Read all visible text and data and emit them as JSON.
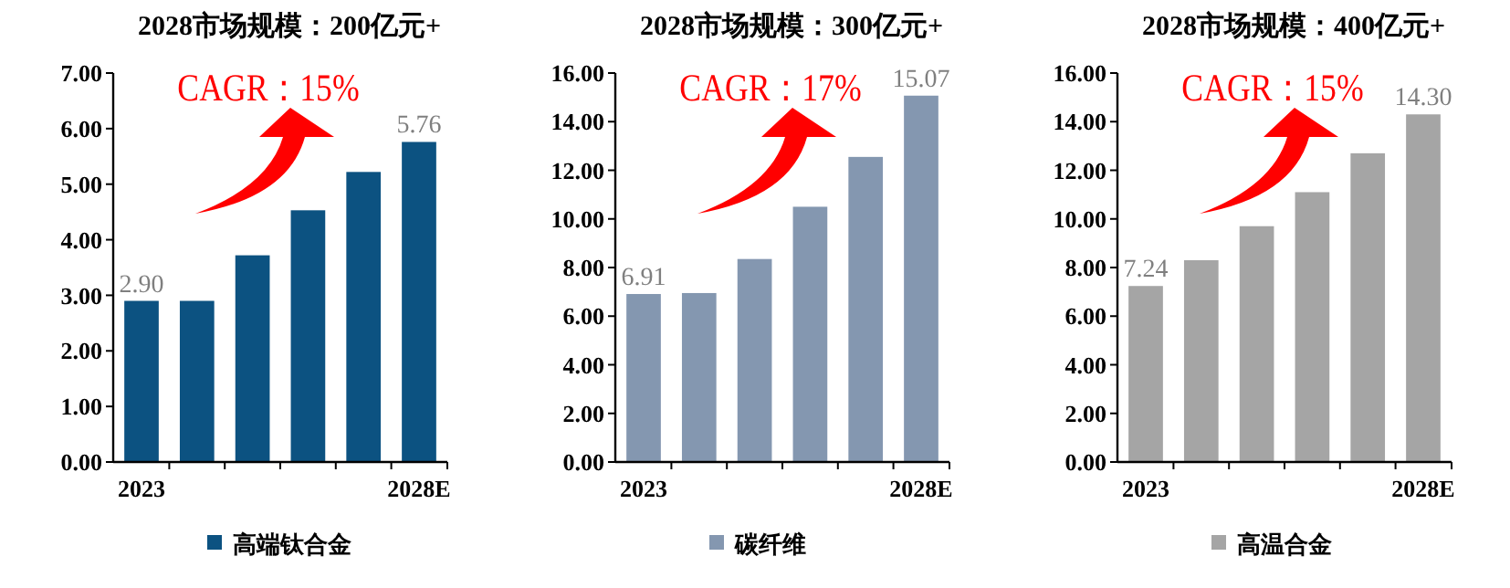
{
  "chart_data": [
    {
      "type": "bar",
      "title": "2028市场规模：200亿元+",
      "categories": [
        "2023",
        null,
        null,
        null,
        null,
        "2028E"
      ],
      "series": [
        {
          "name": "高端钛合金",
          "color": "#0c5281",
          "values": [
            2.9,
            2.9,
            3.72,
            4.53,
            5.22,
            5.76
          ],
          "value_labels": [
            "2.90",
            null,
            null,
            null,
            null,
            "5.76"
          ]
        }
      ],
      "ylim": [
        0,
        7
      ],
      "yticks": [
        {
          "value": 0,
          "label": "0.00"
        },
        {
          "value": 1,
          "label": "1.00"
        },
        {
          "value": 2,
          "label": "2.00"
        },
        {
          "value": 3,
          "label": "3.00"
        },
        {
          "value": 4,
          "label": "4.00"
        },
        {
          "value": 5,
          "label": "5.00"
        },
        {
          "value": 6,
          "label": "6.00"
        },
        {
          "value": 7,
          "label": "7.00"
        }
      ],
      "annotations": [
        "CAGR：15%"
      ],
      "legend": "bottom"
    },
    {
      "type": "bar",
      "title": "2028市场规模：300亿元+",
      "categories": [
        "2023",
        null,
        null,
        null,
        null,
        "2028E"
      ],
      "series": [
        {
          "name": "碳纤维",
          "color": "#8497b0",
          "values": [
            6.91,
            6.95,
            8.35,
            10.5,
            12.55,
            15.07
          ],
          "value_labels": [
            "6.91",
            null,
            null,
            null,
            null,
            "15.07"
          ]
        }
      ],
      "ylim": [
        0,
        16
      ],
      "yticks": [
        {
          "value": 0,
          "label": "0.00"
        },
        {
          "value": 2,
          "label": "2.00"
        },
        {
          "value": 4,
          "label": "4.00"
        },
        {
          "value": 6,
          "label": "6.00"
        },
        {
          "value": 8,
          "label": "8.00"
        },
        {
          "value": 10,
          "label": "10.00"
        },
        {
          "value": 12,
          "label": "12.00"
        },
        {
          "value": 14,
          "label": "14.00"
        },
        {
          "value": 16,
          "label": "16.00"
        }
      ],
      "annotations": [
        "CAGR：17%"
      ],
      "legend": "bottom"
    },
    {
      "type": "bar",
      "title": "2028市场规模：400亿元+",
      "categories": [
        "2023",
        null,
        null,
        null,
        null,
        "2028E"
      ],
      "series": [
        {
          "name": "高温合金",
          "color": "#a5a5a5",
          "values": [
            7.24,
            8.3,
            9.7,
            11.1,
            12.7,
            14.3
          ],
          "value_labels": [
            "7.24",
            null,
            null,
            null,
            null,
            "14.30"
          ]
        }
      ],
      "ylim": [
        0,
        16
      ],
      "yticks": [
        {
          "value": 0,
          "label": "0.00"
        },
        {
          "value": 2,
          "label": "2.00"
        },
        {
          "value": 4,
          "label": "4.00"
        },
        {
          "value": 6,
          "label": "6.00"
        },
        {
          "value": 8,
          "label": "8.00"
        },
        {
          "value": 10,
          "label": "10.00"
        },
        {
          "value": 12,
          "label": "12.00"
        },
        {
          "value": 14,
          "label": "14.00"
        },
        {
          "value": 16,
          "label": "16.00"
        }
      ],
      "annotations": [
        "CAGR：15%"
      ],
      "legend": "bottom"
    }
  ]
}
